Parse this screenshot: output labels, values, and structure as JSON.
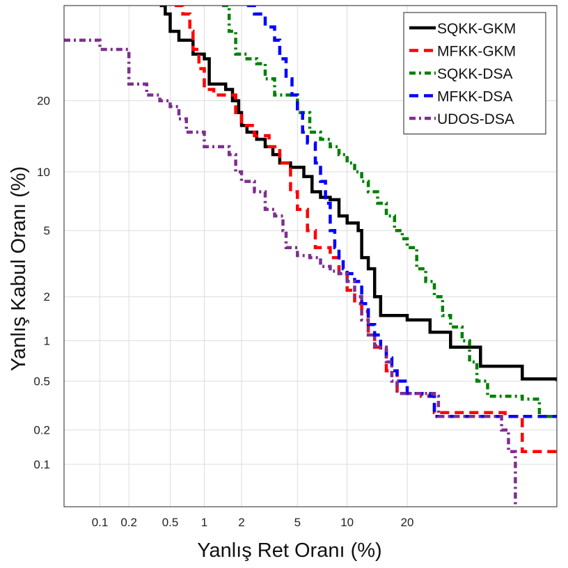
{
  "chart_data": {
    "type": "line",
    "title": "",
    "xlabel": "Yanlış Ret Oranı (%)",
    "ylabel": "Yanlış Kabul Oranı (%)",
    "x_scale": "probit",
    "y_scale": "probit",
    "xlim": [
      0.04,
      60
    ],
    "ylim": [
      0.04,
      40
    ],
    "x_ticks": [
      0.1,
      0.2,
      0.5,
      1,
      2,
      5,
      10,
      20
    ],
    "x_tick_labels": [
      "0.1",
      "0.2",
      "0.5",
      "1",
      "2",
      "5",
      "10",
      "20"
    ],
    "y_ticks": [
      0.1,
      0.2,
      0.5,
      1,
      2,
      5,
      10,
      20
    ],
    "y_tick_labels": [
      "0.1",
      "0.2",
      "0.5",
      "1",
      "2",
      "5",
      "10",
      "20"
    ],
    "grid": true,
    "legend_position": "top-right",
    "series": [
      {
        "name": "SQKK-GKM",
        "color": "#000000",
        "dash": "solid",
        "points": [
          [
            0.4,
            40
          ],
          [
            0.45,
            38
          ],
          [
            0.5,
            34
          ],
          [
            0.6,
            32
          ],
          [
            0.8,
            29
          ],
          [
            1.0,
            28
          ],
          [
            1.1,
            23
          ],
          [
            1.5,
            22
          ],
          [
            1.7,
            20
          ],
          [
            1.9,
            18
          ],
          [
            2.0,
            16
          ],
          [
            2.2,
            15
          ],
          [
            2.6,
            14
          ],
          [
            3.0,
            13
          ],
          [
            3.4,
            12
          ],
          [
            3.8,
            11
          ],
          [
            4.5,
            10.5
          ],
          [
            5.5,
            9.5
          ],
          [
            6.2,
            8
          ],
          [
            7.0,
            7.5
          ],
          [
            8.0,
            7.3
          ],
          [
            9.0,
            6
          ],
          [
            10.0,
            5.5
          ],
          [
            11.5,
            5
          ],
          [
            12.0,
            3.5
          ],
          [
            13.0,
            3.0
          ],
          [
            14.0,
            2.0
          ],
          [
            15.0,
            1.5
          ],
          [
            20.0,
            1.4
          ],
          [
            25.0,
            1.15
          ],
          [
            30.0,
            0.9
          ],
          [
            38.0,
            0.65
          ],
          [
            50.0,
            0.52
          ],
          [
            60,
            0.5
          ]
        ]
      },
      {
        "name": "MFKK-GKM",
        "color": "#ff0000",
        "dash": "dash",
        "points": [
          [
            0.55,
            40
          ],
          [
            0.65,
            38
          ],
          [
            0.75,
            34
          ],
          [
            0.8,
            30
          ],
          [
            0.9,
            26
          ],
          [
            1.0,
            22
          ],
          [
            1.2,
            21
          ],
          [
            1.6,
            21
          ],
          [
            1.8,
            18
          ],
          [
            2.0,
            16
          ],
          [
            2.5,
            14.5
          ],
          [
            3.2,
            13
          ],
          [
            3.8,
            11
          ],
          [
            4.5,
            8
          ],
          [
            5.0,
            6.5
          ],
          [
            5.8,
            5
          ],
          [
            6.5,
            4
          ],
          [
            8.0,
            3.5
          ],
          [
            9.0,
            2.8
          ],
          [
            10.0,
            2.2
          ],
          [
            11.0,
            1.8
          ],
          [
            12.0,
            1.6
          ],
          [
            13.0,
            1.1
          ],
          [
            14.0,
            0.9
          ],
          [
            15.0,
            0.85
          ],
          [
            16.0,
            0.6
          ],
          [
            18.0,
            0.4
          ],
          [
            23.0,
            0.38
          ],
          [
            26.0,
            0.28
          ],
          [
            45.0,
            0.26
          ],
          [
            50.0,
            0.13
          ],
          [
            60,
            0.13
          ]
        ]
      },
      {
        "name": "SQKK-DSA",
        "color": "#008000",
        "dash": "dashdot",
        "points": [
          [
            1.4,
            40
          ],
          [
            1.6,
            34
          ],
          [
            1.8,
            29
          ],
          [
            2.2,
            28
          ],
          [
            2.6,
            27
          ],
          [
            3.0,
            24
          ],
          [
            3.5,
            21
          ],
          [
            4.2,
            21
          ],
          [
            5.0,
            18
          ],
          [
            6.0,
            15
          ],
          [
            7.0,
            14
          ],
          [
            8.0,
            13
          ],
          [
            9.0,
            12
          ],
          [
            10.0,
            11
          ],
          [
            11.0,
            10
          ],
          [
            12.0,
            9
          ],
          [
            13.0,
            8
          ],
          [
            14.5,
            7
          ],
          [
            16.0,
            6
          ],
          [
            17.5,
            5
          ],
          [
            19.0,
            4.5
          ],
          [
            20.0,
            4.0
          ],
          [
            22.0,
            3.0
          ],
          [
            24.0,
            2.5
          ],
          [
            26.0,
            2.0
          ],
          [
            28.0,
            1.5
          ],
          [
            30.0,
            1.25
          ],
          [
            33.0,
            1.0
          ],
          [
            35.0,
            0.7
          ],
          [
            37.0,
            0.5
          ],
          [
            40.0,
            0.38
          ],
          [
            50.0,
            0.36
          ],
          [
            55.0,
            0.26
          ],
          [
            60,
            0.26
          ]
        ]
      },
      {
        "name": "MFKK-DSA",
        "color": "#0000ff",
        "dash": "dash",
        "points": [
          [
            2.2,
            40
          ],
          [
            2.5,
            38
          ],
          [
            3.0,
            35
          ],
          [
            3.5,
            32
          ],
          [
            3.8,
            28
          ],
          [
            4.2,
            24
          ],
          [
            4.6,
            21
          ],
          [
            5.0,
            18
          ],
          [
            5.4,
            15
          ],
          [
            5.8,
            13.5
          ],
          [
            6.5,
            11
          ],
          [
            7.0,
            9
          ],
          [
            7.5,
            7
          ],
          [
            8.0,
            5
          ],
          [
            8.5,
            4
          ],
          [
            9.0,
            3.5
          ],
          [
            9.5,
            3.0
          ],
          [
            10.0,
            2.8
          ],
          [
            11.0,
            2.5
          ],
          [
            12.0,
            1.8
          ],
          [
            13.0,
            1.3
          ],
          [
            14.0,
            1.1
          ],
          [
            15.0,
            0.9
          ],
          [
            16.0,
            0.75
          ],
          [
            17.0,
            0.6
          ],
          [
            18.0,
            0.5
          ],
          [
            20.0,
            0.4
          ],
          [
            25.0,
            0.38
          ],
          [
            26.0,
            0.26
          ],
          [
            60,
            0.26
          ]
        ]
      },
      {
        "name": "UDOS-DSA",
        "color": "#7e2f8e",
        "dash": "dashdot",
        "points": [
          [
            0.04,
            32
          ],
          [
            0.08,
            32
          ],
          [
            0.1,
            30
          ],
          [
            0.15,
            30
          ],
          [
            0.2,
            23
          ],
          [
            0.25,
            23
          ],
          [
            0.3,
            21
          ],
          [
            0.4,
            20
          ],
          [
            0.5,
            19
          ],
          [
            0.6,
            17
          ],
          [
            0.7,
            15
          ],
          [
            0.9,
            15
          ],
          [
            1.0,
            13
          ],
          [
            1.3,
            13
          ],
          [
            1.6,
            12
          ],
          [
            1.8,
            10
          ],
          [
            2.0,
            9
          ],
          [
            2.5,
            8
          ],
          [
            3.0,
            6.5
          ],
          [
            3.5,
            6
          ],
          [
            4.0,
            5
          ],
          [
            4.2,
            4
          ],
          [
            5.0,
            3.6
          ],
          [
            6.0,
            3.5
          ],
          [
            7.0,
            3.1
          ],
          [
            8.0,
            2.9
          ],
          [
            9.0,
            2.8
          ],
          [
            10.0,
            2.5
          ],
          [
            11.0,
            2.0
          ],
          [
            12.0,
            1.4
          ],
          [
            13.0,
            1.1
          ],
          [
            14.0,
            0.92
          ],
          [
            15.0,
            0.9
          ],
          [
            16.0,
            0.7
          ],
          [
            17.0,
            0.5
          ],
          [
            18.0,
            0.4
          ],
          [
            24.0,
            0.4
          ],
          [
            26.0,
            0.38
          ],
          [
            27.0,
            0.26
          ],
          [
            42.0,
            0.26
          ],
          [
            44.0,
            0.2
          ],
          [
            46.0,
            0.13
          ],
          [
            48.0,
            0.04
          ]
        ]
      }
    ]
  }
}
